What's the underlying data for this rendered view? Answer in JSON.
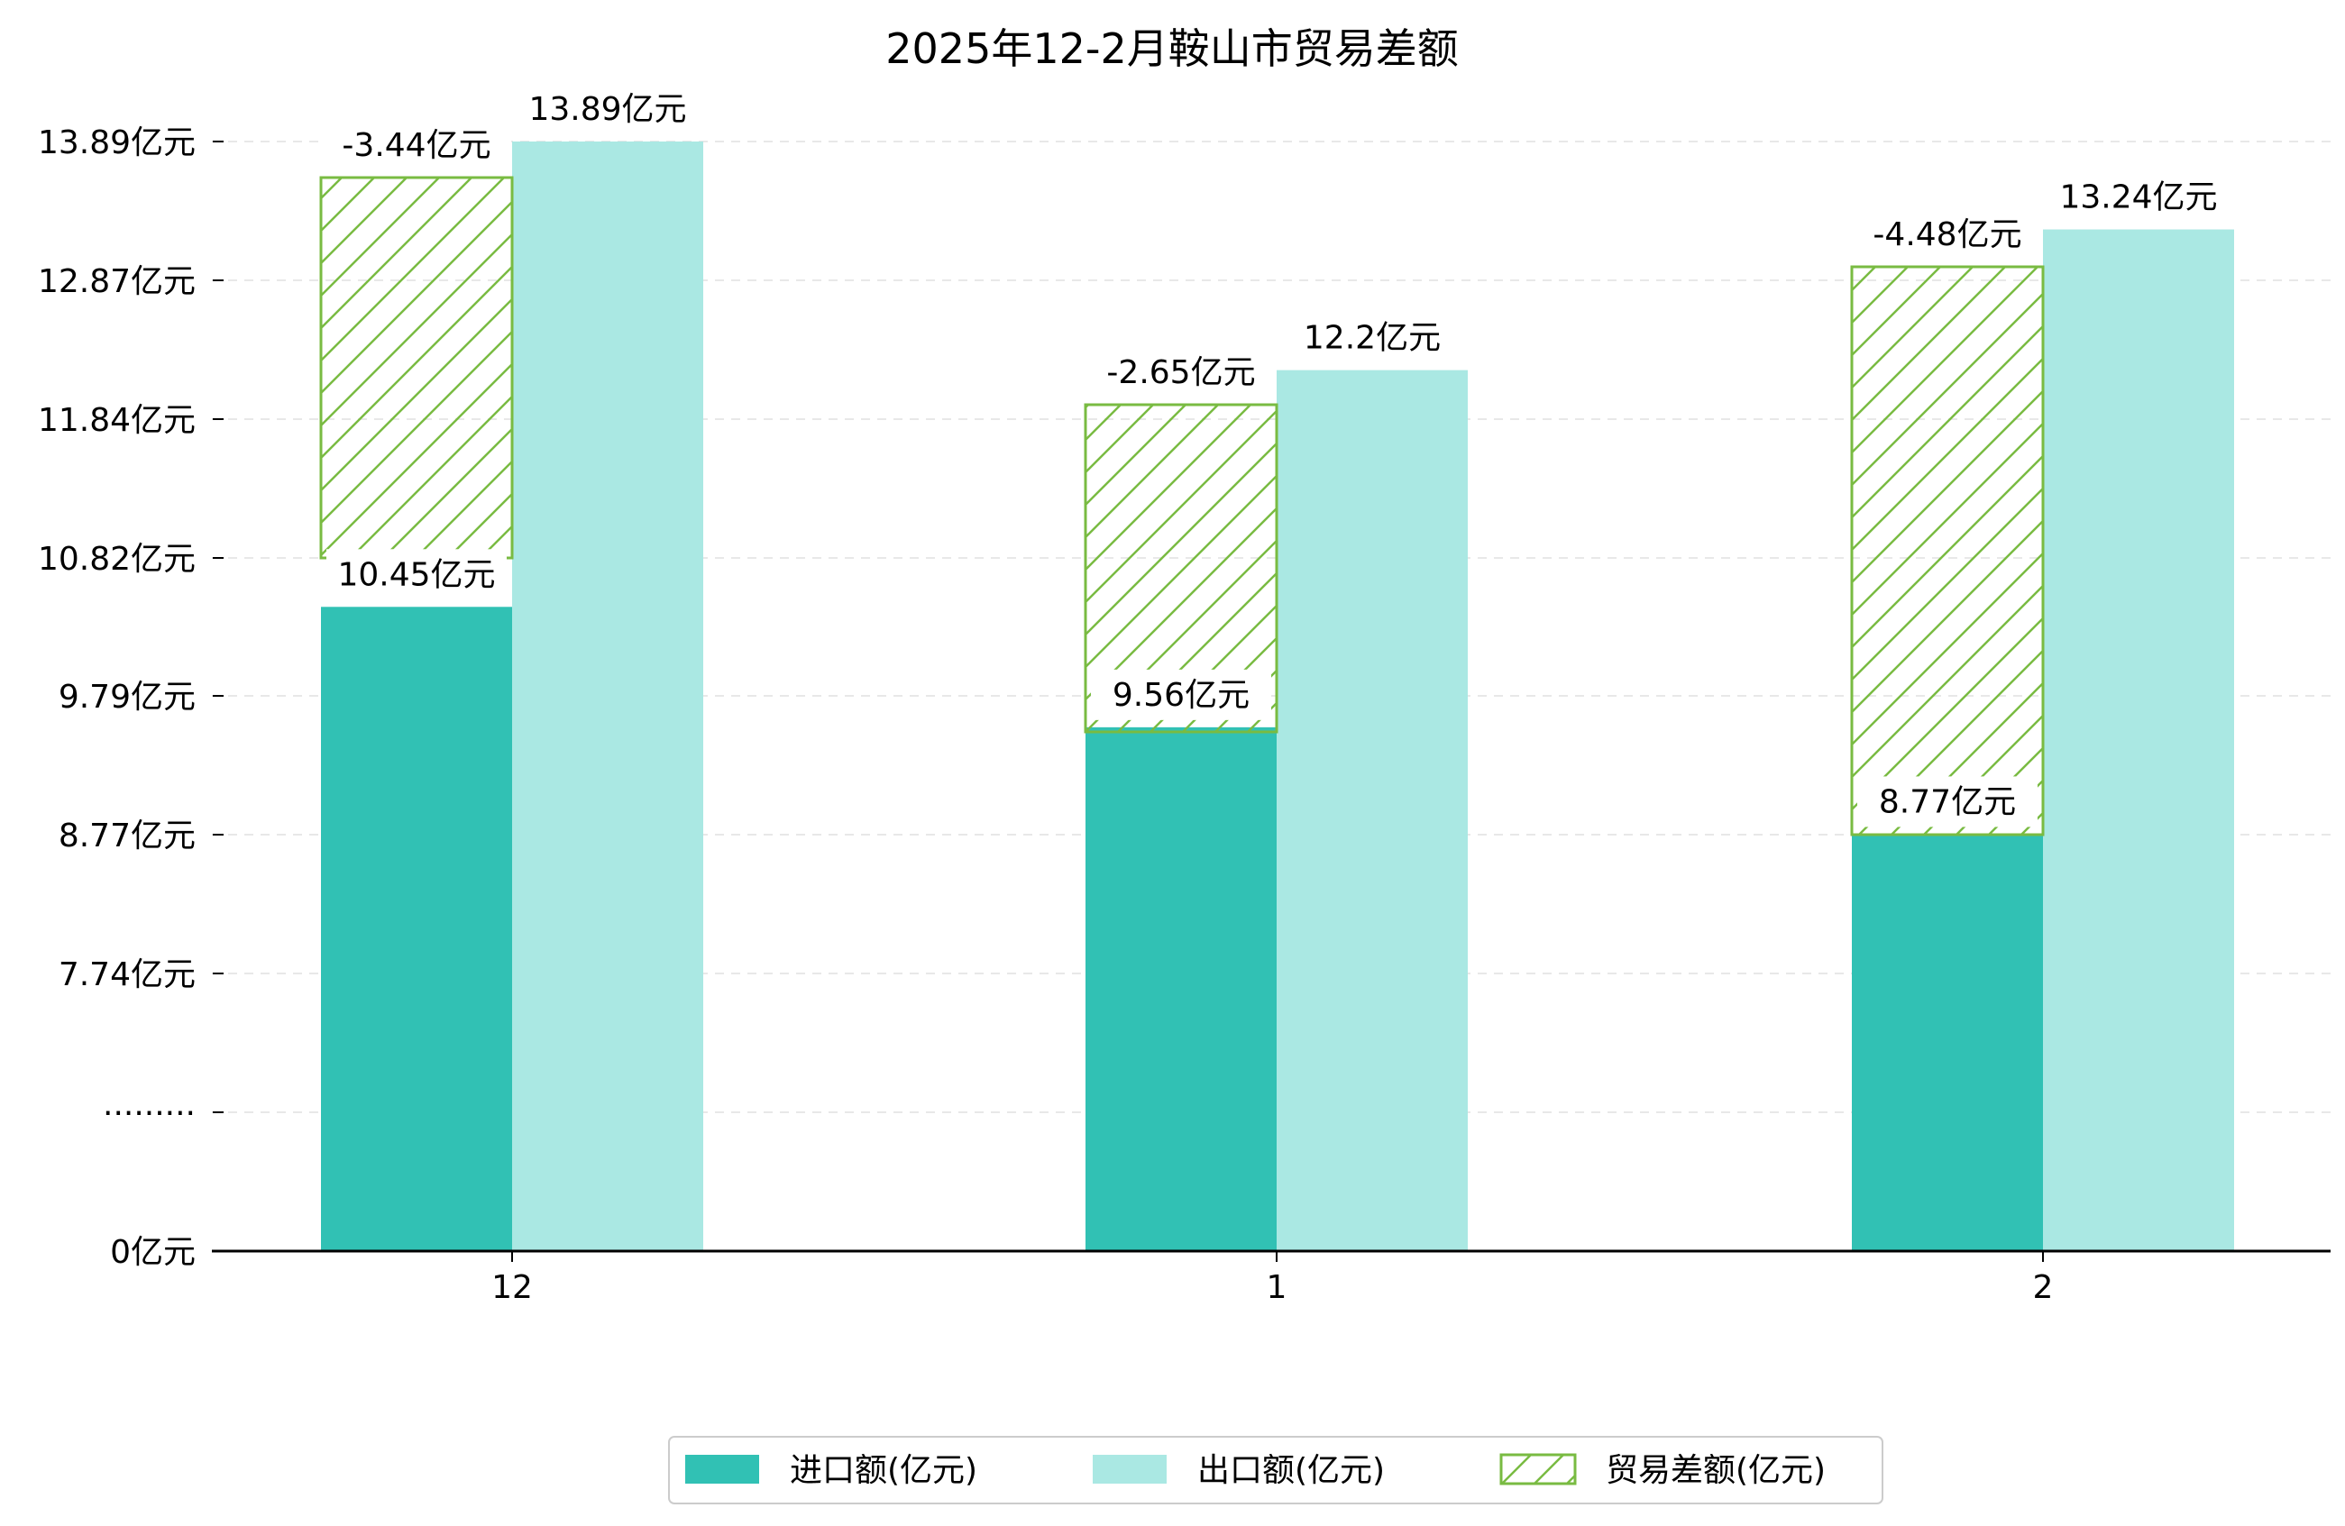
{
  "chart_data": {
    "type": "bar",
    "title": "2025年12-2月鞍山市贸易差额",
    "categories": [
      "12",
      "1",
      "2"
    ],
    "y_tick_labels": [
      "0亿元",
      "·········",
      "7.74亿元",
      "8.77亿元",
      "9.79亿元",
      "10.82亿元",
      "11.84亿元",
      "12.87亿元",
      "13.89亿元"
    ],
    "series": [
      {
        "name": "进口额(亿元)",
        "values": [
          10.45,
          9.56,
          8.77
        ],
        "labels": [
          "10.45亿元",
          "9.56亿元",
          "8.77亿元"
        ]
      },
      {
        "name": "出口额(亿元)",
        "values": [
          13.89,
          12.2,
          13.24
        ],
        "labels": [
          "13.89亿元",
          "12.2亿元",
          "13.24亿元"
        ]
      },
      {
        "name": "贸易差额(亿元)",
        "values": [
          -3.44,
          -2.65,
          -4.48
        ],
        "labels": [
          "-3.44亿元",
          "-2.65亿元",
          "-4.48亿元"
        ]
      }
    ],
    "ylim": [
      0,
      13.89
    ],
    "axis_break": true,
    "grid": "horizontal dashed",
    "legend_position": "bottom-center",
    "colors": {
      "import": "#31c1b4",
      "export": "#aae8e3",
      "balance": "#79bb42",
      "axis": "#000000",
      "grid": "#e8e8e8"
    }
  }
}
